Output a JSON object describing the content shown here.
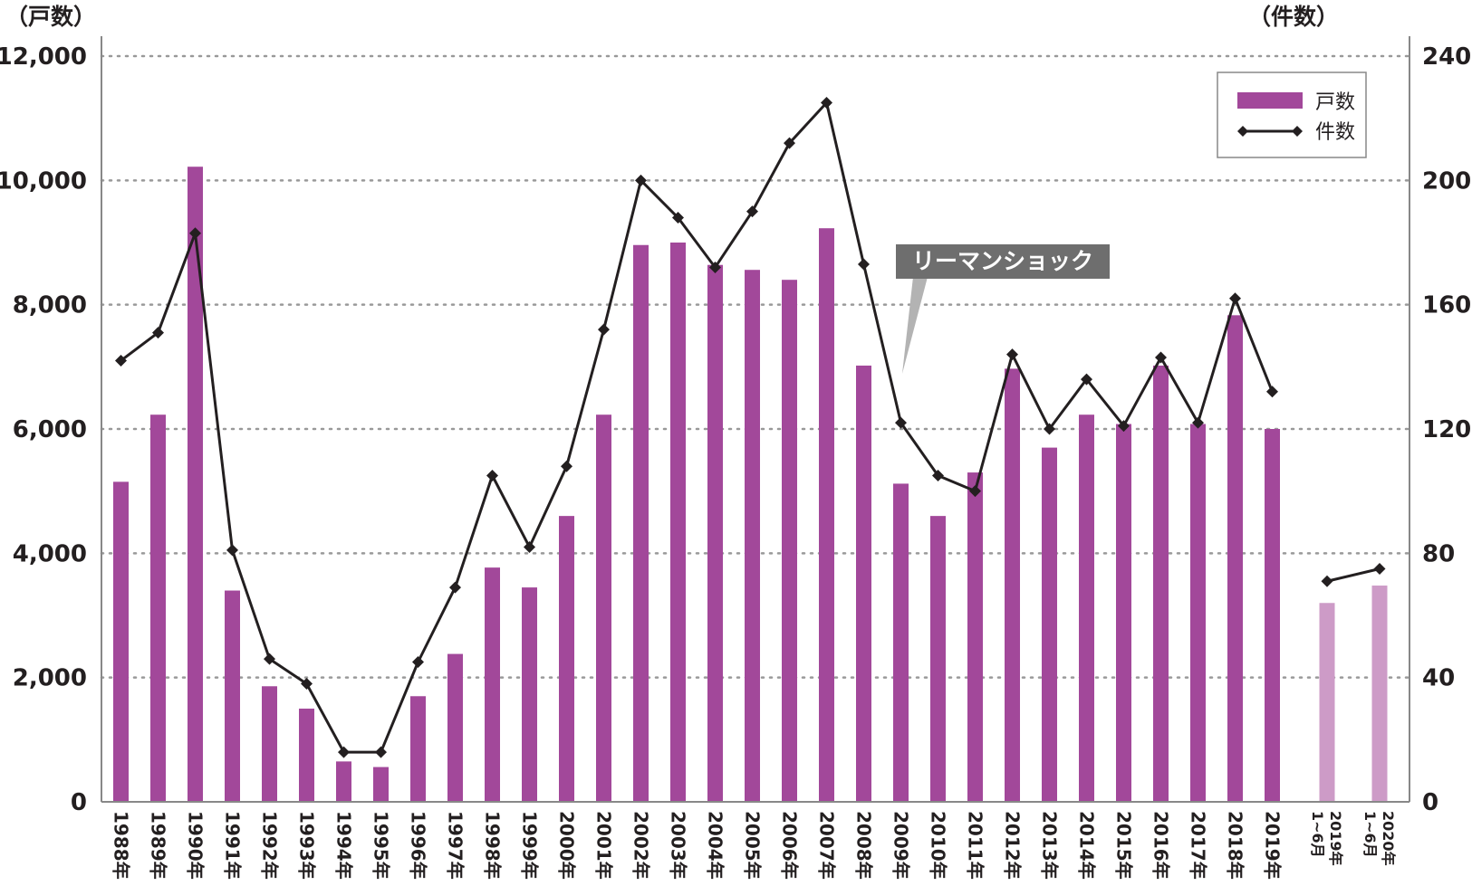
{
  "chart_data": {
    "type": "bar",
    "title": "",
    "categories": [
      "1988年",
      "1989年",
      "1990年",
      "1991年",
      "1992年",
      "1993年",
      "1994年",
      "1995年",
      "1996年",
      "1997年",
      "1998年",
      "1999年",
      "2000年",
      "2001年",
      "2002年",
      "2003年",
      "2004年",
      "2005年",
      "2006年",
      "2007年",
      "2008年",
      "2009年",
      "2010年",
      "2011年",
      "2012年",
      "2013年",
      "2014年",
      "2015年",
      "2016年",
      "2017年",
      "2018年",
      "2019年",
      "2019年 1~6月",
      "2020年 1~6月"
    ],
    "series": [
      {
        "name": "戸数",
        "type": "bar",
        "axis": "left",
        "values": [
          5150,
          6230,
          10220,
          3400,
          1860,
          1500,
          650,
          560,
          1700,
          2380,
          3770,
          3450,
          4600,
          6230,
          8960,
          9000,
          8640,
          8560,
          8400,
          9230,
          7020,
          5120,
          4600,
          5300,
          6970,
          5700,
          6230,
          6080,
          7020,
          6080,
          7830,
          6000,
          3200,
          3480
        ]
      },
      {
        "name": "件数",
        "type": "line",
        "axis": "right",
        "values": [
          142,
          151,
          183,
          81,
          46,
          38,
          16,
          16,
          45,
          69,
          105,
          82,
          108,
          152,
          200,
          188,
          172,
          190,
          212,
          225,
          173,
          122,
          105,
          100,
          144,
          120,
          136,
          121,
          143,
          122,
          162,
          132,
          71,
          75
        ]
      }
    ],
    "y_left": {
      "label": "（戸数）",
      "range": [
        0,
        12000
      ],
      "ticks": [
        "0",
        "2,000",
        "4,000",
        "6,000",
        "8,000",
        "10,000",
        "12,000"
      ]
    },
    "y_right": {
      "label": "（件数）",
      "range": [
        0,
        240
      ],
      "ticks": [
        "0",
        "40",
        "80",
        "120",
        "160",
        "200",
        "240"
      ]
    },
    "annotation": {
      "text": "リーマンショック",
      "category": "2008年"
    },
    "legend": {
      "position": "top-right",
      "items": [
        "戸数",
        "件数"
      ]
    },
    "grid": true,
    "colors": {
      "bar": "#a2489a",
      "bar_partial": "#cd9bc7",
      "line": "#231f20",
      "callout": "#6e6e6e",
      "grid": "#999999"
    },
    "partial_from_index": 32
  }
}
